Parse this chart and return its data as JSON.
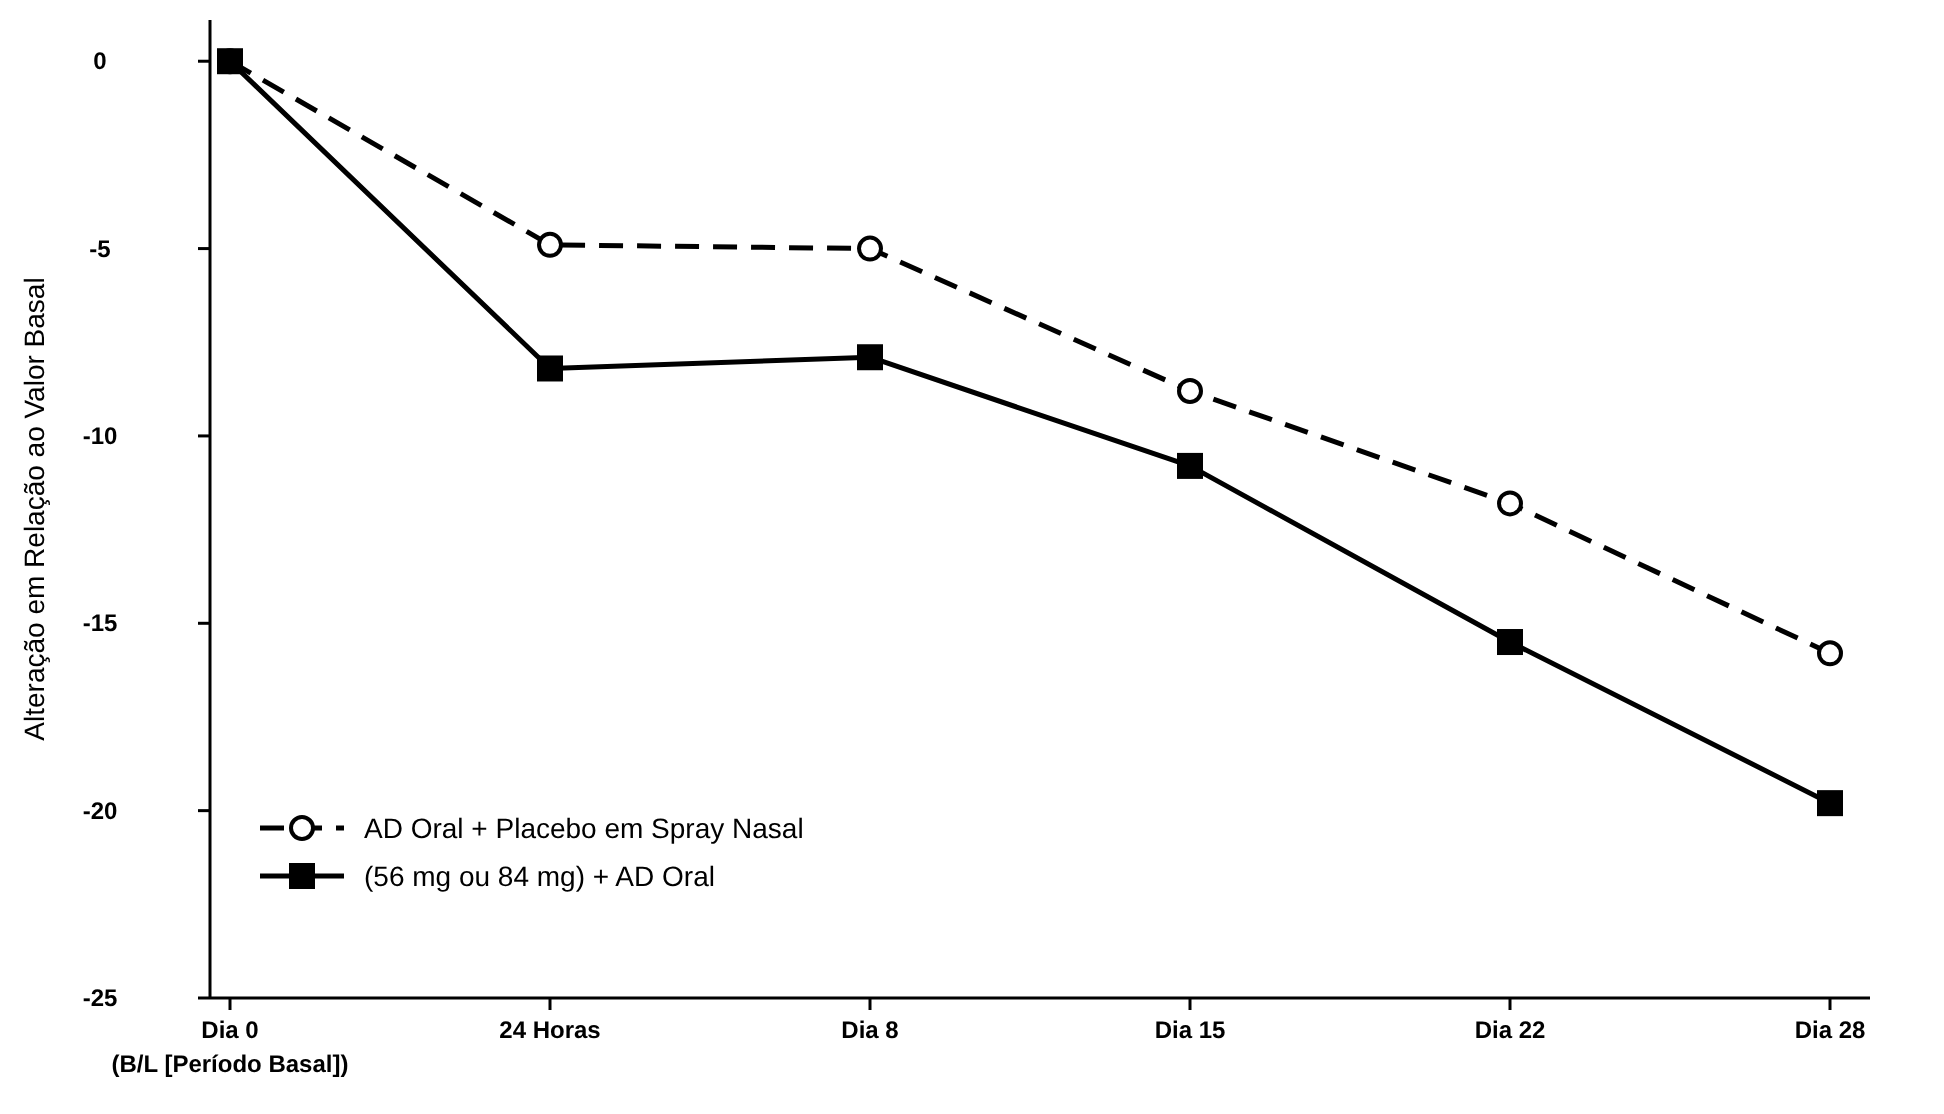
{
  "chart_data": {
    "type": "line",
    "ylabel": "Alteração em Relação ao Valor Basal",
    "categories": [
      "Dia 0\n(B/L [Período Basal])",
      "24 Horas",
      "Dia 8",
      "Dia 15",
      "Dia 22",
      "Dia 28"
    ],
    "ylim": [
      -25,
      1.1
    ],
    "yticks": [
      0,
      -5,
      -10,
      -15,
      -20,
      -25
    ],
    "series": [
      {
        "name": "AD Oral + Placebo em Spray Nasal",
        "color": "#000000",
        "values": [
          0,
          -4.9,
          -5.0,
          -8.8,
          -11.8,
          -15.8
        ],
        "marker": "circle",
        "line_style": "dashed"
      },
      {
        "name": "(56 mg ou 84 mg) + AD Oral",
        "color": "#000000",
        "values": [
          0,
          -8.2,
          -7.9,
          -10.8,
          -15.5,
          -19.8
        ],
        "marker": "square",
        "line_style": "solid"
      }
    ],
    "legend": "bottom left",
    "grid": false
  }
}
